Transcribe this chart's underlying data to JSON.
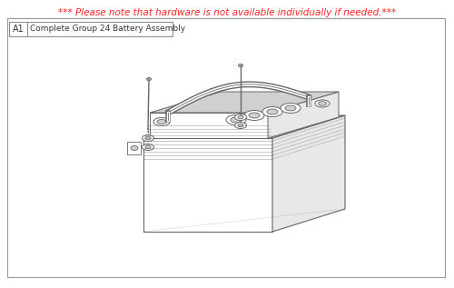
{
  "title": "*** Please note that hardware is not available individually if needed.***",
  "title_color": "#ff2222",
  "title_fontsize": 7.5,
  "label_A1": "A1",
  "label_desc": "Complete Group 24 Battery Assembly",
  "bg_color": "#ffffff",
  "border_color": "#999999",
  "line_color": "#666666",
  "light_gray": "#e8e8e8",
  "mid_gray": "#d0d0d0",
  "dark_gray": "#aaaaaa",
  "fig_width": 5.0,
  "fig_height": 3.17,
  "dpi": 100
}
